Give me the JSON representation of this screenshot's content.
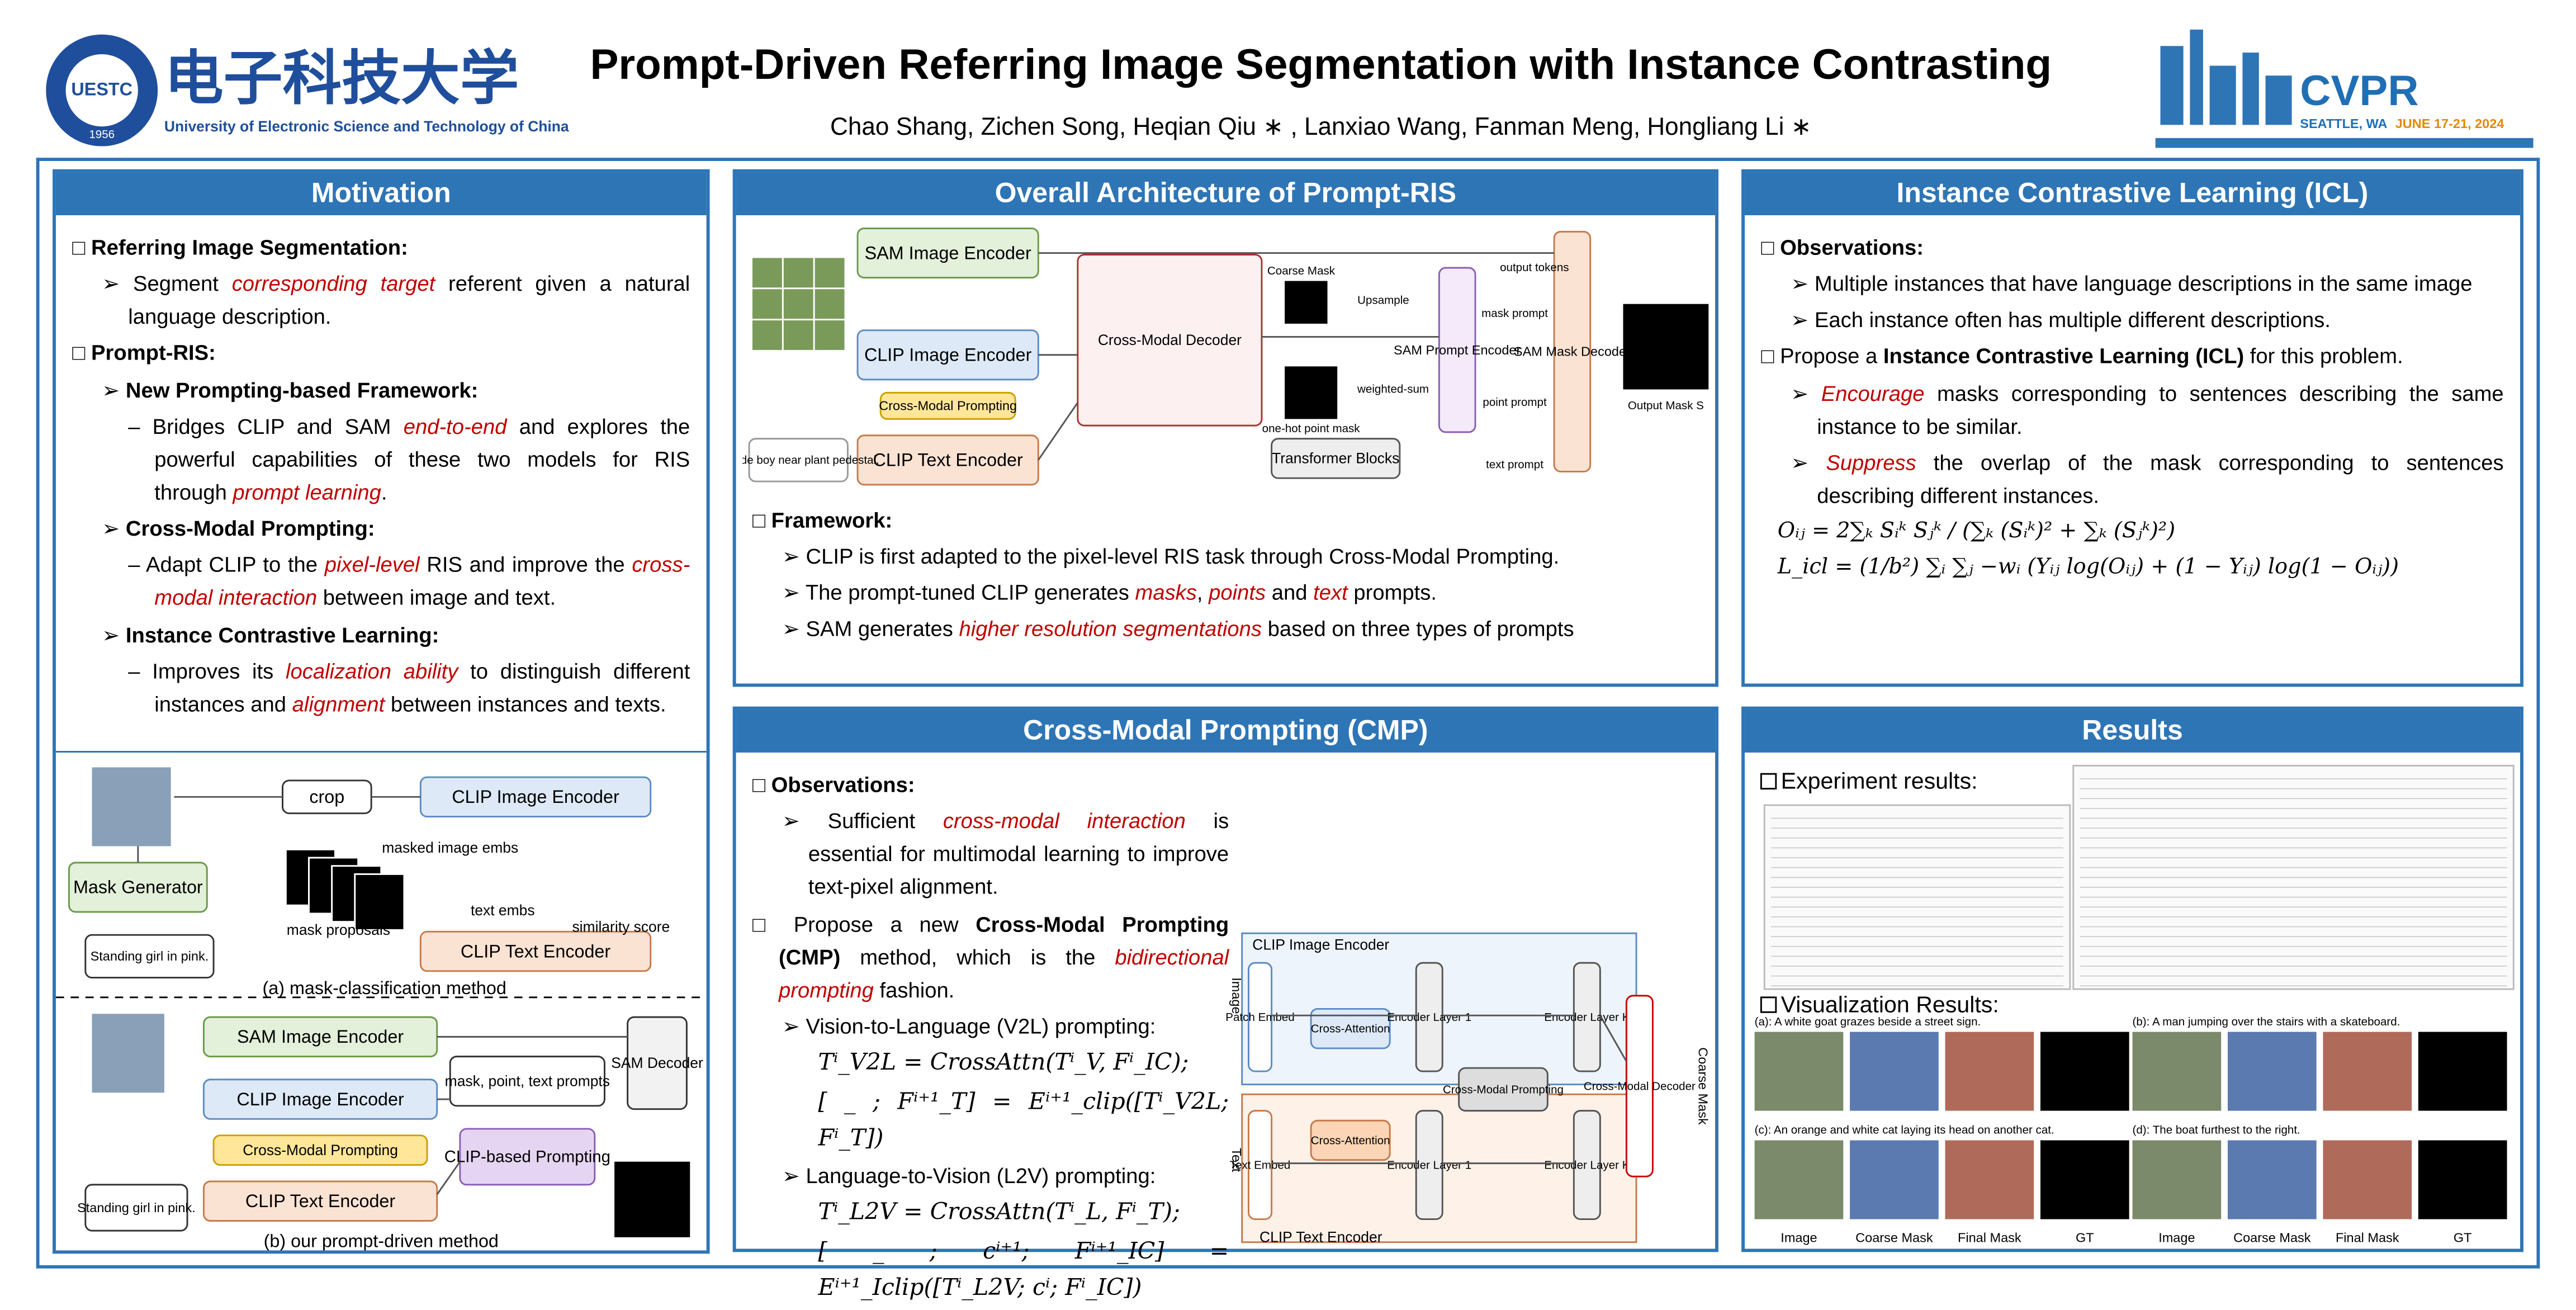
{
  "header": {
    "title": "Prompt-Driven Referring Image Segmentation with Instance Contrasting",
    "authors": "Chao Shang, Zichen Song, Heqian Qiu ∗ , Lanxiao Wang, Fanman Meng, Hongliang Li ∗",
    "university": {
      "cn": "电子科技大学",
      "en": "University of Electronic Science and Technology of China",
      "badge": "UESTC",
      "year": "1956"
    },
    "conference": {
      "name": "CVPR",
      "place": "SEATTLE, WA",
      "dates": "JUNE 17-21, 2024"
    }
  },
  "motivation": {
    "title": "Motivation",
    "items": [
      {
        "level": 0,
        "parts": [
          {
            "b": "Referring Image Segmentation:"
          }
        ]
      },
      {
        "level": 1,
        "parts": [
          "Segment ",
          {
            "em": "corresponding target"
          },
          " referent given a natural language description."
        ]
      },
      {
        "level": 0,
        "parts": [
          {
            "b": "Prompt-RIS:"
          }
        ]
      },
      {
        "level": 1,
        "parts": [
          {
            "b": "New Prompting-based Framework:"
          }
        ]
      },
      {
        "level": 2,
        "parts": [
          "Bridges CLIP and SAM ",
          {
            "em": "end-to-end"
          },
          " and explores the powerful capabilities of these two models for RIS through ",
          {
            "em": "prompt learning"
          },
          "."
        ]
      },
      {
        "level": 1,
        "parts": [
          {
            "b": "Cross-Modal Prompting:"
          }
        ]
      },
      {
        "level": 2,
        "parts": [
          "Adapt CLIP to the ",
          {
            "em": "pixel-level"
          },
          " RIS and improve the ",
          {
            "em": "cross-modal interaction"
          },
          " between image and text."
        ]
      },
      {
        "level": 1,
        "parts": [
          {
            "b": "Instance Contrastive Learning:"
          }
        ]
      },
      {
        "level": 2,
        "parts": [
          "Improves its ",
          {
            "em": "localization ability"
          },
          " to distinguish different instances and ",
          {
            "em": "alignment"
          },
          " between instances and texts."
        ]
      }
    ],
    "diagram": {
      "boxes": [
        "crop",
        "CLIP Image Encoder",
        "Mask Generator",
        "CLIP Text Encoder",
        "Standing girl in pink.",
        "SAM Image Encoder",
        "CLIP Image Encoder",
        "Cross-Modal Prompting",
        "CLIP Text Encoder",
        "Standing girl in pink.",
        "CLIP-based Prompting",
        "mask, point, text prompts",
        "SAM Decoder"
      ],
      "texts": [
        "masked image embs",
        "mask proposals",
        "text embs",
        "similarity score",
        "(a) mask-classification method",
        "(b) our prompt-driven method"
      ]
    }
  },
  "architecture": {
    "title": "Overall Architecture of Prompt-RIS",
    "items": [
      {
        "level": 0,
        "parts": [
          {
            "b": "Framework:"
          }
        ]
      },
      {
        "level": 1,
        "parts": [
          "CLIP is first adapted to the pixel-level RIS task through Cross-Modal Prompting."
        ]
      },
      {
        "level": 1,
        "parts": [
          "The prompt-tuned CLIP generates ",
          {
            "em": "masks"
          },
          ", ",
          {
            "em": "points"
          },
          " and ",
          {
            "em": "text"
          },
          " prompts."
        ]
      },
      {
        "level": 1,
        "parts": [
          "SAM generates ",
          {
            "em": "higher resolution segmentations"
          },
          " based on three types of prompts"
        ]
      }
    ],
    "diagram": {
      "boxes": [
        "SAM Image Encoder",
        "CLIP Image Encoder",
        "Cross-Modal Prompting",
        "CLIP Text Encoder",
        "Blonde boy near plant pedestal.",
        "Cross-Modal Decoder",
        "Transformer Blocks",
        "SAM Prompt Encoder",
        "SAM Mask Decoder"
      ],
      "texts": [
        "Coarse Mask",
        "Upsample",
        "one-hot point mask",
        "weighted-sum",
        "mask prompt",
        "point prompt",
        "text prompt",
        "output tokens",
        "Output Mask S"
      ]
    }
  },
  "icl": {
    "title": "Instance Contrastive Learning (ICL)",
    "items": [
      {
        "level": 0,
        "parts": [
          {
            "b": "Observations:"
          }
        ]
      },
      {
        "level": 1,
        "parts": [
          "Multiple instances that have language descriptions in the same image"
        ]
      },
      {
        "level": 1,
        "parts": [
          "Each instance often has multiple different descriptions."
        ]
      },
      {
        "level": 0,
        "parts": [
          "Propose a ",
          {
            "b": "Instance Contrastive Learning (ICL)"
          },
          " for this problem."
        ]
      },
      {
        "level": 1,
        "parts": [
          {
            "em": "Encourage"
          },
          " masks corresponding to sentences describing the same instance to be similar."
        ]
      },
      {
        "level": 1,
        "parts": [
          {
            "em": "Suppress"
          },
          " the overlap of the mask corresponding to sentences describing different instances."
        ]
      }
    ],
    "equations": [
      "Oᵢⱼ = 2∑ₖ Sᵢᵏ Sⱼᵏ / (∑ₖ (Sᵢᵏ)² + ∑ₖ (Sⱼᵏ)²)",
      "L_icl = (1/b²) ∑ᵢ ∑ⱼ −wᵢ (Yᵢⱼ log(Oᵢⱼ) + (1 − Yᵢⱼ) log(1 − Oᵢⱼ))"
    ]
  },
  "cmp": {
    "title": "Cross-Modal Prompting (CMP)",
    "items": [
      {
        "level": 0,
        "parts": [
          {
            "b": "Observations:"
          }
        ]
      },
      {
        "level": 1,
        "parts": [
          "Sufficient ",
          {
            "em": "cross-modal interaction"
          },
          " is essential for multimodal learning to improve text-pixel alignment."
        ]
      },
      {
        "level": 0,
        "parts": [
          "Propose a new ",
          {
            "b": "Cross-Modal Prompting (CMP)"
          },
          " method, which is the ",
          {
            "em": "bidirectional prompting"
          },
          " fashion."
        ]
      },
      {
        "level": 1,
        "parts": [
          "Vision-to-Language (V2L) prompting:"
        ]
      },
      {
        "level": 3,
        "parts": [
          "Tⁱ_V2L = CrossAttn(Tⁱ_V, Fⁱ_IC);"
        ]
      },
      {
        "level": 3,
        "parts": [
          "[ _ ; Fⁱ⁺¹_T] = Eⁱ⁺¹_clip([Tⁱ_V2L; Fⁱ_T])"
        ]
      },
      {
        "level": 1,
        "parts": [
          "Language-to-Vision (L2V) prompting:"
        ]
      },
      {
        "level": 3,
        "parts": [
          "Tⁱ_L2V = CrossAttn(Tⁱ_L, Fⁱ_T);"
        ]
      },
      {
        "level": 3,
        "parts": [
          "[ _ ; cⁱ⁺¹; Fⁱ⁺¹_IC] = Eⁱ⁺¹_Iclip([Tⁱ_L2V; cⁱ; Fⁱ_IC])"
        ]
      }
    ],
    "diagram": {
      "boxes": [
        "CLIP Image Encoder",
        "Patch Embed",
        "Cross-Attention",
        "Cross-Attention",
        "Encoder Layer 1",
        "Encoder Layer 1",
        "Cross-Modal Prompting",
        "Encoder Layer K",
        "Encoder Layer K",
        "Cross-Modal Decoder",
        "Text Embed",
        "CLIP Text Encoder"
      ],
      "texts": [
        "Image",
        "Text",
        "Coarse Mask"
      ]
    }
  },
  "results": {
    "title": "Results",
    "experiment": "Experiment results:",
    "visualization": "Visualization Results:",
    "captions": [
      "(a): A white goat grazes beside a street sign.",
      "(b): A man jumping over the stairs with a skateboard.",
      "(c): An orange and white cat laying its head on another cat.",
      "(d): The boat furthest to the right."
    ],
    "columns": [
      "Image",
      "Coarse Mask",
      "Final Mask",
      "GT"
    ]
  }
}
